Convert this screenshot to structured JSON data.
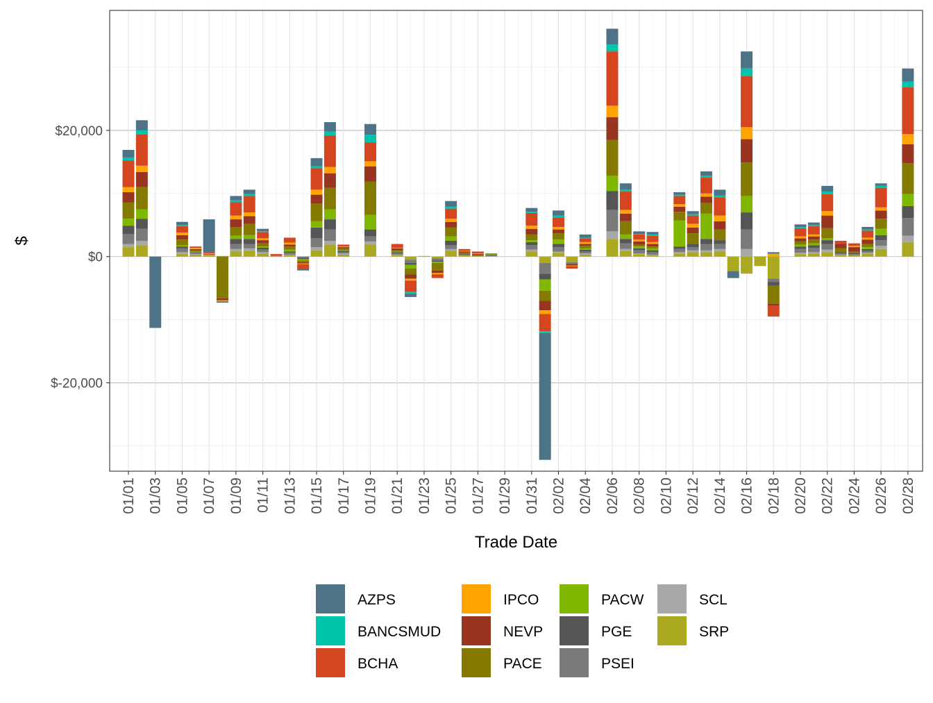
{
  "chart_data": {
    "type": "bar",
    "stacked": true,
    "title": "",
    "xlabel": "Trade Date",
    "ylabel": "$",
    "ylim": [
      -34000,
      39000
    ],
    "y_ticks": [
      {
        "value": 20000,
        "label": "$20,000"
      },
      {
        "value": 0,
        "label": "$0"
      },
      {
        "value": -20000,
        "label": "$-20,000"
      }
    ],
    "x_tick_labels": [
      "01/01",
      "01/03",
      "01/05",
      "01/07",
      "01/09",
      "01/11",
      "01/13",
      "01/15",
      "01/17",
      "01/19",
      "01/21",
      "01/23",
      "01/25",
      "01/27",
      "01/29",
      "01/31",
      "02/02",
      "02/04",
      "02/06",
      "02/08",
      "02/10",
      "02/12",
      "02/14",
      "02/16",
      "02/18",
      "02/20",
      "02/22",
      "02/24",
      "02/26",
      "02/28"
    ],
    "grid": true,
    "legend_position": "bottom",
    "colors": {
      "AZPS": "#4e7387",
      "BANCSMUD": "#00c5ad",
      "BCHA": "#d54620",
      "IPCO": "#ffa400",
      "NEVP": "#983520",
      "PACE": "#847a00",
      "PACW": "#80b800",
      "PGE": "#555555",
      "PSEI": "#7a7a7a",
      "SCL": "#a8a8a8",
      "SRP": "#aaa920"
    },
    "legend_order": [
      "AZPS",
      "BANCSMUD",
      "BCHA",
      "IPCO",
      "NEVP",
      "PACE",
      "PACW",
      "PGE",
      "PSEI",
      "SCL",
      "SRP"
    ],
    "stack_order": [
      "SRP",
      "SCL",
      "PSEI",
      "PGE",
      "PACW",
      "PACE",
      "NEVP",
      "IPCO",
      "BCHA",
      "BANCSMUD",
      "AZPS"
    ],
    "categories": [
      "01/01",
      "01/02",
      "01/03",
      "01/04",
      "01/05",
      "01/06",
      "01/07",
      "01/08",
      "01/09",
      "01/10",
      "01/11",
      "01/12",
      "01/13",
      "01/14",
      "01/15",
      "01/16",
      "01/17",
      "01/18",
      "01/19",
      "01/20",
      "01/21",
      "01/22",
      "01/23",
      "01/24",
      "01/25",
      "01/26",
      "01/27",
      "01/28",
      "01/29",
      "01/30",
      "01/31",
      "02/01",
      "02/02",
      "02/03",
      "02/04",
      "02/05",
      "02/06",
      "02/07",
      "02/08",
      "02/09",
      "02/10",
      "02/11",
      "02/12",
      "02/13",
      "02/14",
      "02/15",
      "02/16",
      "02/17",
      "02/18",
      "02/19",
      "02/20",
      "02/21",
      "02/22",
      "02/23",
      "02/24",
      "02/25",
      "02/26",
      "02/27",
      "02/28"
    ],
    "series": [
      {
        "name": "SRP",
        "values": [
          1500,
          1800,
          0,
          0,
          400,
          300,
          200,
          100,
          800,
          900,
          500,
          100,
          200,
          0,
          1000,
          1900,
          300,
          0,
          1900,
          0,
          200,
          -500,
          100,
          -300,
          900,
          200,
          100,
          100,
          0,
          0,
          800,
          -1000,
          600,
          -900,
          300,
          0,
          2800,
          900,
          400,
          200,
          0,
          500,
          700,
          700,
          800,
          -2300,
          -2700,
          -1500,
          -3500,
          0,
          400,
          500,
          700,
          200,
          200,
          500,
          1200,
          0,
          2300
        ]
      },
      {
        "name": "SCL",
        "values": [
          500,
          700,
          0,
          0,
          300,
          100,
          100,
          0,
          400,
          400,
          200,
          0,
          100,
          0,
          500,
          600,
          200,
          0,
          500,
          0,
          100,
          0,
          0,
          0,
          300,
          0,
          0,
          0,
          0,
          0,
          300,
          0,
          200,
          0,
          200,
          0,
          1200,
          300,
          100,
          100,
          0,
          200,
          300,
          300,
          400,
          0,
          1200,
          0,
          0,
          0,
          200,
          200,
          400,
          100,
          0,
          100,
          500,
          0,
          1000
        ]
      },
      {
        "name": "PSEI",
        "values": [
          1600,
          1900,
          0,
          0,
          600,
          200,
          0,
          0,
          800,
          700,
          400,
          0,
          300,
          -200,
          1400,
          1800,
          200,
          0,
          800,
          0,
          200,
          -500,
          0,
          -300,
          600,
          100,
          0,
          100,
          0,
          0,
          700,
          -1700,
          700,
          -200,
          300,
          0,
          3400,
          900,
          500,
          400,
          0,
          500,
          500,
          1000,
          800,
          0,
          3100,
          0,
          -500,
          0,
          600,
          700,
          900,
          200,
          200,
          300,
          900,
          0,
          2800
        ]
      },
      {
        "name": "PGE",
        "values": [
          1300,
          1600,
          0,
          0,
          300,
          100,
          0,
          0,
          800,
          800,
          300,
          0,
          200,
          -200,
          1700,
          1600,
          200,
          0,
          1100,
          0,
          200,
          -300,
          0,
          -200,
          700,
          100,
          0,
          100,
          0,
          0,
          500,
          -900,
          500,
          -100,
          300,
          0,
          3000,
          700,
          300,
          300,
          0,
          400,
          500,
          800,
          600,
          0,
          2700,
          0,
          -600,
          0,
          400,
          400,
          600,
          200,
          200,
          300,
          800,
          0,
          1900
        ]
      },
      {
        "name": "PACW",
        "values": [
          1100,
          1500,
          0,
          0,
          200,
          100,
          0,
          0,
          500,
          600,
          200,
          0,
          300,
          -200,
          1000,
          1600,
          100,
          0,
          2300,
          0,
          100,
          -600,
          0,
          -200,
          700,
          0,
          0,
          100,
          0,
          0,
          300,
          -1800,
          700,
          0,
          200,
          0,
          2400,
          700,
          300,
          300,
          0,
          4100,
          0,
          4000,
          0,
          0,
          2600,
          0,
          0,
          0,
          300,
          300,
          300,
          0,
          0,
          300,
          1000,
          0,
          1900
        ]
      },
      {
        "name": "PACE",
        "values": [
          2600,
          3500,
          0,
          0,
          900,
          200,
          0,
          -6600,
          1400,
          1800,
          500,
          0,
          500,
          -300,
          2800,
          3400,
          300,
          0,
          5300,
          0,
          200,
          -900,
          0,
          -1200,
          1400,
          200,
          100,
          100,
          0,
          0,
          900,
          -1600,
          1000,
          0,
          400,
          0,
          5700,
          2100,
          300,
          300,
          0,
          1400,
          1700,
          1700,
          1700,
          0,
          5300,
          0,
          -2900,
          0,
          500,
          600,
          1600,
          600,
          200,
          500,
          1600,
          0,
          4900
        ]
      },
      {
        "name": "NEVP",
        "values": [
          1600,
          2400,
          0,
          0,
          700,
          200,
          100,
          -300,
          1200,
          1200,
          500,
          0,
          300,
          -200,
          1400,
          2300,
          200,
          0,
          2400,
          0,
          300,
          -700,
          0,
          -400,
          900,
          200,
          200,
          0,
          0,
          0,
          900,
          -1500,
          600,
          -200,
          300,
          0,
          3600,
          1200,
          500,
          400,
          0,
          800,
          900,
          1000,
          1300,
          0,
          3700,
          0,
          -300,
          0,
          500,
          500,
          2000,
          700,
          700,
          700,
          1300,
          0,
          3000
        ]
      },
      {
        "name": "IPCO",
        "values": [
          800,
          1000,
          0,
          0,
          400,
          200,
          100,
          -200,
          600,
          600,
          300,
          0,
          300,
          -100,
          800,
          1000,
          100,
          0,
          800,
          0,
          100,
          -300,
          0,
          -200,
          500,
          100,
          100,
          0,
          0,
          0,
          500,
          -600,
          400,
          -100,
          300,
          0,
          1800,
          600,
          300,
          300,
          0,
          400,
          600,
          500,
          900,
          0,
          1900,
          0,
          400,
          0,
          300,
          300,
          700,
          0,
          200,
          300,
          500,
          0,
          1600
        ]
      },
      {
        "name": "BCHA",
        "values": [
          4200,
          5000,
          0,
          0,
          1000,
          200,
          200,
          0,
          2100,
          2600,
          1000,
          300,
          800,
          -700,
          3400,
          5000,
          300,
          0,
          3000,
          0,
          600,
          -1800,
          0,
          -600,
          1600,
          300,
          300,
          0,
          0,
          0,
          2000,
          -2700,
          1500,
          -400,
          600,
          0,
          8600,
          2900,
          800,
          1000,
          0,
          1300,
          1300,
          2500,
          2900,
          0,
          8100,
          0,
          -1700,
          0,
          1300,
          1300,
          2700,
          500,
          400,
          1100,
          3100,
          0,
          7400
        ]
      },
      {
        "name": "BANCSMUD",
        "values": [
          500,
          600,
          0,
          0,
          200,
          0,
          0,
          0,
          300,
          300,
          100,
          0,
          0,
          0,
          300,
          600,
          0,
          0,
          1200,
          0,
          0,
          -300,
          0,
          0,
          300,
          0,
          0,
          0,
          0,
          0,
          200,
          -300,
          300,
          0,
          100,
          0,
          1100,
          300,
          100,
          200,
          0,
          200,
          200,
          300,
          300,
          0,
          1200,
          0,
          100,
          0,
          200,
          200,
          400,
          0,
          0,
          200,
          300,
          0,
          900
        ]
      },
      {
        "name": "AZPS",
        "values": [
          1200,
          1600,
          -11300,
          0,
          500,
          0,
          5200,
          -200,
          700,
          700,
          400,
          0,
          0,
          -300,
          1300,
          1500,
          0,
          0,
          1700,
          0,
          0,
          -500,
          0,
          0,
          900,
          0,
          0,
          0,
          0,
          0,
          600,
          -20100,
          800,
          0,
          500,
          0,
          2500,
          1000,
          400,
          400,
          0,
          400,
          500,
          700,
          900,
          -1100,
          2700,
          0,
          200,
          0,
          400,
          400,
          900,
          0,
          0,
          400,
          400,
          0,
          2100
        ]
      }
    ]
  }
}
